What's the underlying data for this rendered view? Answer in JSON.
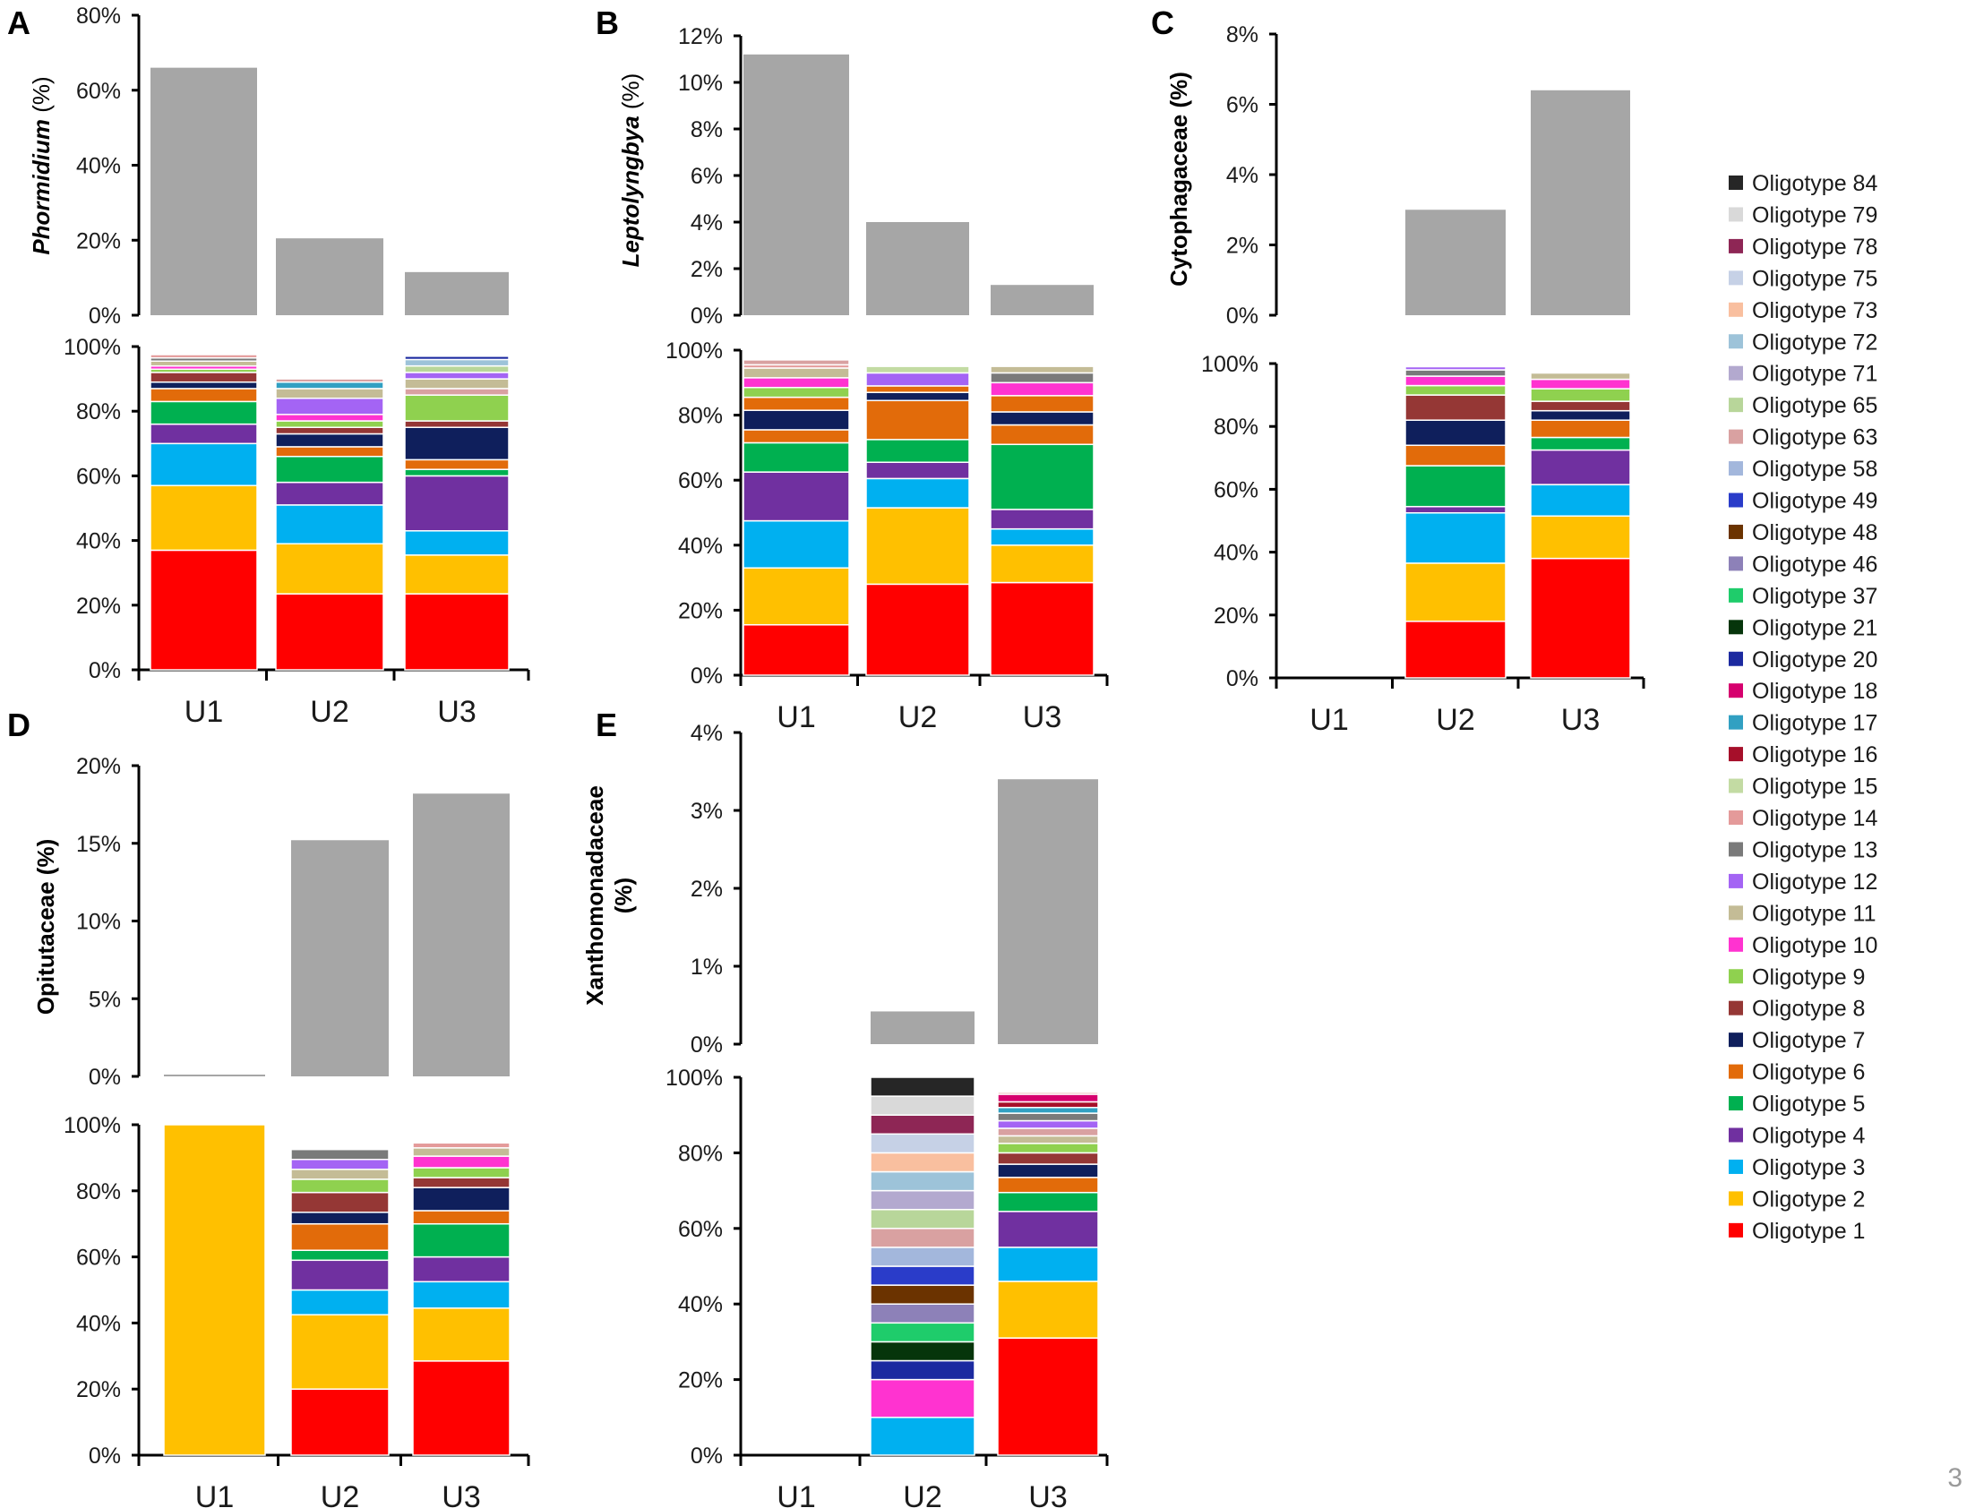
{
  "page_number": "3",
  "legend": [
    {
      "label": "Oligotype 84",
      "color": "#262626"
    },
    {
      "label": "Oligotype 79",
      "color": "#d9d9d9"
    },
    {
      "label": "Oligotype 78",
      "color": "#8e2655"
    },
    {
      "label": "Oligotype 75",
      "color": "#c6d1e6"
    },
    {
      "label": "Oligotype 73",
      "color": "#f9bf9f"
    },
    {
      "label": "Oligotype 72",
      "color": "#9dc3d9"
    },
    {
      "label": "Oligotype 71",
      "color": "#b3a9cf"
    },
    {
      "label": "Oligotype 65",
      "color": "#b8d69a"
    },
    {
      "label": "Oligotype 63",
      "color": "#d9a1a1"
    },
    {
      "label": "Oligotype 58",
      "color": "#a3b7dc"
    },
    {
      "label": "Oligotype 49",
      "color": "#2a3cc9"
    },
    {
      "label": "Oligotype 48",
      "color": "#6b3300"
    },
    {
      "label": "Oligotype 46",
      "color": "#8d81b8"
    },
    {
      "label": "Oligotype 37",
      "color": "#1fcc6b"
    },
    {
      "label": "Oligotype 21",
      "color": "#06350b"
    },
    {
      "label": "Oligotype 20",
      "color": "#1c2aa0"
    },
    {
      "label": "Oligotype 18",
      "color": "#d6006e"
    },
    {
      "label": "Oligotype 17",
      "color": "#31a0c2"
    },
    {
      "label": "Oligotype 16",
      "color": "#a60f2a"
    },
    {
      "label": "Oligotype 15",
      "color": "#c3dba3"
    },
    {
      "label": "Oligotype 14",
      "color": "#e49a9a"
    },
    {
      "label": "Oligotype 13",
      "color": "#7a7a7a"
    },
    {
      "label": "Oligotype 12",
      "color": "#a464f4"
    },
    {
      "label": "Oligotype 11",
      "color": "#c4bc96"
    },
    {
      "label": "Oligotype 10",
      "color": "#ff33d0"
    },
    {
      "label": "Oligotype 9",
      "color": "#8fd14f"
    },
    {
      "label": "Oligotype 8",
      "color": "#953735"
    },
    {
      "label": "Oligotype 7",
      "color": "#0f1f5c"
    },
    {
      "label": "Oligotype 6",
      "color": "#e26b0a"
    },
    {
      "label": "Oligotype 5",
      "color": "#00b050"
    },
    {
      "label": "Oligotype 4",
      "color": "#7030a0"
    },
    {
      "label": "Oligotype 3",
      "color": "#00b0f0"
    },
    {
      "label": "Oligotype 2",
      "color": "#ffc000"
    },
    {
      "label": "Oligotype 1",
      "color": "#ff0000"
    }
  ],
  "chart_data": [
    {
      "panel": "A",
      "type": "bar+stacked-bar",
      "categories": [
        "U1",
        "U2",
        "U3"
      ],
      "top": {
        "ylabel": "Phormidium (%)",
        "ylabel_italic_part": "Phormidium",
        "ylabel_rest": " (%)",
        "ylim": [
          0,
          80
        ],
        "ticks": [
          "0%",
          "20%",
          "40%",
          "60%",
          "80%"
        ],
        "tick_values": [
          0,
          20,
          40,
          60,
          80
        ],
        "values": [
          66,
          20.5,
          11.5
        ],
        "color": "#a6a6a6"
      },
      "bottom": {
        "ylim": [
          0,
          100
        ],
        "ticks": [
          "0%",
          "20%",
          "40%",
          "60%",
          "80%",
          "100%"
        ],
        "stacks": [
          [
            [
              "Oligotype 1",
              37
            ],
            [
              "Oligotype 2",
              20
            ],
            [
              "Oligotype 3",
              13
            ],
            [
              "Oligotype 4",
              6
            ],
            [
              "Oligotype 5",
              7
            ],
            [
              "Oligotype 6",
              4
            ],
            [
              "Oligotype 7",
              2
            ],
            [
              "Oligotype 8",
              3
            ],
            [
              "Oligotype 9",
              1
            ],
            [
              "Oligotype 10",
              1
            ],
            [
              "Oligotype 11",
              1.5
            ],
            [
              "Oligotype 13",
              1
            ],
            [
              "Oligotype 14",
              1
            ]
          ],
          [
            [
              "Oligotype 1",
              23.5
            ],
            [
              "Oligotype 2",
              15.5
            ],
            [
              "Oligotype 3",
              12
            ],
            [
              "Oligotype 4",
              7
            ],
            [
              "Oligotype 5",
              8
            ],
            [
              "Oligotype 6",
              3
            ],
            [
              "Oligotype 7",
              4
            ],
            [
              "Oligotype 8",
              2
            ],
            [
              "Oligotype 9",
              2
            ],
            [
              "Oligotype 10",
              2
            ],
            [
              "Oligotype 12",
              5
            ],
            [
              "Oligotype 11",
              3
            ],
            [
              "Oligotype 17",
              2
            ],
            [
              "Oligotype 63",
              1
            ]
          ],
          [
            [
              "Oligotype 1",
              23.5
            ],
            [
              "Oligotype 2",
              12
            ],
            [
              "Oligotype 3",
              7.5
            ],
            [
              "Oligotype 4",
              17
            ],
            [
              "Oligotype 5",
              2
            ],
            [
              "Oligotype 6",
              3
            ],
            [
              "Oligotype 7",
              10
            ],
            [
              "Oligotype 8",
              2
            ],
            [
              "Oligotype 9",
              8
            ],
            [
              "Oligotype 63",
              2
            ],
            [
              "Oligotype 11",
              3
            ],
            [
              "Oligotype 12",
              2
            ],
            [
              "Oligotype 65",
              2
            ],
            [
              "Oligotype 72",
              2
            ],
            [
              "Oligotype 20",
              1
            ]
          ]
        ]
      }
    },
    {
      "panel": "B",
      "type": "bar+stacked-bar",
      "categories": [
        "U1",
        "U2",
        "U3"
      ],
      "top": {
        "ylabel": "Leptolyngbya (%)",
        "ylabel_italic_part": "Leptolyngbya",
        "ylabel_rest": " (%)",
        "ylim": [
          0,
          12
        ],
        "ticks": [
          "0%",
          "2%",
          "4%",
          "6%",
          "8%",
          "10%",
          "12%"
        ],
        "tick_values": [
          0,
          2,
          4,
          6,
          8,
          10,
          12
        ],
        "values": [
          11.2,
          4,
          1.3
        ],
        "color": "#a6a6a6"
      },
      "bottom": {
        "ylim": [
          0,
          100
        ],
        "ticks": [
          "0%",
          "20%",
          "40%",
          "60%",
          "80%",
          "100%"
        ],
        "stacks": [
          [
            [
              "Oligotype 1",
              15.5
            ],
            [
              "Oligotype 2",
              17.5
            ],
            [
              "Oligotype 3",
              14.5
            ],
            [
              "Oligotype 4",
              15
            ],
            [
              "Oligotype 5",
              9
            ],
            [
              "Oligotype 6",
              4
            ],
            [
              "Oligotype 7",
              6
            ],
            [
              "Oligotype 6",
              4
            ],
            [
              "Oligotype 9",
              3
            ],
            [
              "Oligotype 10",
              3
            ],
            [
              "Oligotype 11",
              3
            ],
            [
              "Oligotype 14",
              1
            ],
            [
              "Oligotype 63",
              1.5
            ]
          ],
          [
            [
              "Oligotype 1",
              28
            ],
            [
              "Oligotype 2",
              23.5
            ],
            [
              "Oligotype 3",
              9
            ],
            [
              "Oligotype 4",
              5
            ],
            [
              "Oligotype 5",
              7
            ],
            [
              "Oligotype 6",
              12
            ],
            [
              "Oligotype 7",
              2.5
            ],
            [
              "Oligotype 6",
              2
            ],
            [
              "Oligotype 12",
              4
            ],
            [
              "Oligotype 15",
              2
            ]
          ],
          [
            [
              "Oligotype 1",
              28.5
            ],
            [
              "Oligotype 2",
              11.5
            ],
            [
              "Oligotype 3",
              5
            ],
            [
              "Oligotype 4",
              6
            ],
            [
              "Oligotype 5",
              20
            ],
            [
              "Oligotype 6",
              6
            ],
            [
              "Oligotype 7",
              4
            ],
            [
              "Oligotype 6",
              5
            ],
            [
              "Oligotype 10",
              4
            ],
            [
              "Oligotype 13",
              3
            ],
            [
              "Oligotype 11",
              2
            ]
          ]
        ]
      }
    },
    {
      "panel": "C",
      "type": "bar+stacked-bar",
      "categories": [
        "U1",
        "U2",
        "U3"
      ],
      "top": {
        "ylabel": "Cytophagaceae (%)",
        "ylabel_italic_part": "",
        "ylabel_rest": "Cytophagaceae (%)",
        "ylim": [
          0,
          8
        ],
        "ticks": [
          "0%",
          "2%",
          "4%",
          "6%",
          "8%"
        ],
        "tick_values": [
          0,
          2,
          4,
          6,
          8
        ],
        "values": [
          0,
          3,
          6.4
        ],
        "color": "#a6a6a6"
      },
      "bottom": {
        "ylim": [
          0,
          100
        ],
        "ticks": [
          "0%",
          "20%",
          "40%",
          "60%",
          "80%",
          "100%"
        ],
        "stacks": [
          [],
          [
            [
              "Oligotype 1",
              18
            ],
            [
              "Oligotype 2",
              18.5
            ],
            [
              "Oligotype 3",
              16
            ],
            [
              "Oligotype 4",
              2
            ],
            [
              "Oligotype 5",
              13
            ],
            [
              "Oligotype 6",
              6.5
            ],
            [
              "Oligotype 7",
              8
            ],
            [
              "Oligotype 8",
              8
            ],
            [
              "Oligotype 9",
              3
            ],
            [
              "Oligotype 10",
              3
            ],
            [
              "Oligotype 13",
              2
            ],
            [
              "Oligotype 12",
              1
            ]
          ],
          [
            [
              "Oligotype 1",
              38
            ],
            [
              "Oligotype 2",
              13.5
            ],
            [
              "Oligotype 3",
              10
            ],
            [
              "Oligotype 4",
              11
            ],
            [
              "Oligotype 5",
              4
            ],
            [
              "Oligotype 6",
              5.5
            ],
            [
              "Oligotype 7",
              3
            ],
            [
              "Oligotype 8",
              3
            ],
            [
              "Oligotype 9",
              4
            ],
            [
              "Oligotype 10",
              3
            ],
            [
              "Oligotype 11",
              2
            ]
          ]
        ]
      }
    },
    {
      "panel": "D",
      "type": "bar+stacked-bar",
      "categories": [
        "U1",
        "U2",
        "U3"
      ],
      "top": {
        "ylabel": "Opitutaceae (%)",
        "ylabel_italic_part": "",
        "ylabel_rest": "Opitutaceae (%)",
        "ylim": [
          0,
          20
        ],
        "ticks": [
          "0%",
          "5%",
          "10%",
          "15%",
          "20%"
        ],
        "tick_values": [
          0,
          5,
          10,
          15,
          20
        ],
        "values": [
          0.1,
          15.2,
          18.2
        ],
        "color": "#a6a6a6"
      },
      "bottom": {
        "ylim": [
          0,
          100
        ],
        "ticks": [
          "0%",
          "20%",
          "40%",
          "60%",
          "80%",
          "100%"
        ],
        "stacks": [
          [
            [
              "Oligotype 2",
              100
            ]
          ],
          [
            [
              "Oligotype 1",
              20
            ],
            [
              "Oligotype 2",
              22.5
            ],
            [
              "Oligotype 3",
              7.5
            ],
            [
              "Oligotype 4",
              9
            ],
            [
              "Oligotype 5",
              3
            ],
            [
              "Oligotype 6",
              8
            ],
            [
              "Oligotype 7",
              3.5
            ],
            [
              "Oligotype 8",
              6
            ],
            [
              "Oligotype 9",
              4
            ],
            [
              "Oligotype 11",
              3
            ],
            [
              "Oligotype 12",
              3
            ],
            [
              "Oligotype 13",
              3
            ]
          ],
          [
            [
              "Oligotype 1",
              28.5
            ],
            [
              "Oligotype 2",
              16
            ],
            [
              "Oligotype 3",
              8
            ],
            [
              "Oligotype 4",
              7.5
            ],
            [
              "Oligotype 5",
              10
            ],
            [
              "Oligotype 6",
              4
            ],
            [
              "Oligotype 7",
              7
            ],
            [
              "Oligotype 8",
              3
            ],
            [
              "Oligotype 9",
              3
            ],
            [
              "Oligotype 10",
              3.5
            ],
            [
              "Oligotype 11",
              2.5
            ],
            [
              "Oligotype 14",
              1.5
            ]
          ]
        ]
      }
    },
    {
      "panel": "E",
      "type": "bar+stacked-bar",
      "categories": [
        "U1",
        "U2",
        "U3"
      ],
      "top": {
        "ylabel": "Xanthomonadaceae (%)",
        "ylabel_italic_part": "",
        "ylabel_rest": "Xanthomonadaceae",
        "ylabel_line2": "(%)",
        "ylim": [
          0,
          4
        ],
        "ticks": [
          "0%",
          "1%",
          "2%",
          "3%",
          "4%"
        ],
        "tick_values": [
          0,
          1,
          2,
          3,
          4
        ],
        "values": [
          0,
          0.42,
          3.4
        ],
        "color": "#a6a6a6"
      },
      "bottom": {
        "ylim": [
          0,
          100
        ],
        "ticks": [
          "0%",
          "20%",
          "40%",
          "60%",
          "80%",
          "100%"
        ],
        "stacks": [
          [],
          [
            [
              "Oligotype 3",
              10
            ],
            [
              "Oligotype 10",
              10
            ],
            [
              "Oligotype 20",
              5
            ],
            [
              "Oligotype 21",
              5
            ],
            [
              "Oligotype 37",
              5
            ],
            [
              "Oligotype 46",
              5
            ],
            [
              "Oligotype 48",
              5
            ],
            [
              "Oligotype 49",
              5
            ],
            [
              "Oligotype 58",
              5
            ],
            [
              "Oligotype 63",
              5
            ],
            [
              "Oligotype 65",
              5
            ],
            [
              "Oligotype 71",
              5
            ],
            [
              "Oligotype 72",
              5
            ],
            [
              "Oligotype 73",
              5
            ],
            [
              "Oligotype 75",
              5
            ],
            [
              "Oligotype 78",
              5
            ],
            [
              "Oligotype 79",
              5
            ],
            [
              "Oligotype 84",
              5
            ]
          ],
          [
            [
              "Oligotype 1",
              31
            ],
            [
              "Oligotype 2",
              15
            ],
            [
              "Oligotype 3",
              9
            ],
            [
              "Oligotype 4",
              9.5
            ],
            [
              "Oligotype 5",
              5
            ],
            [
              "Oligotype 6",
              4
            ],
            [
              "Oligotype 7",
              3.5
            ],
            [
              "Oligotype 8",
              3
            ],
            [
              "Oligotype 9",
              2.5
            ],
            [
              "Oligotype 11",
              2
            ],
            [
              "Oligotype 63",
              2
            ],
            [
              "Oligotype 12",
              2
            ],
            [
              "Oligotype 13",
              2
            ],
            [
              "Oligotype 17",
              1.5
            ],
            [
              "Oligotype 16",
              1.5
            ],
            [
              "Oligotype 18",
              2
            ],
            [
              "Oligotype 14",
              0.5
            ]
          ]
        ]
      }
    }
  ]
}
